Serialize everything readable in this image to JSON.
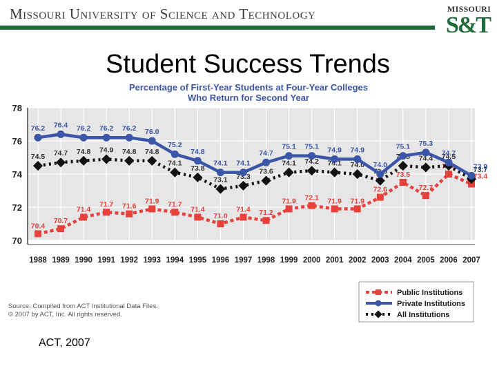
{
  "header": {
    "university": "Missouri University of Science and Technology",
    "logo_top": "MISSOURI",
    "logo_main": "S&T"
  },
  "slide": {
    "title": "Student Success Trends",
    "footer": "ACT, 2007"
  },
  "chart_data": {
    "type": "line",
    "title": "Percentage of First-Year Students at Four-Year Colleges",
    "subtitle": "Who Return for Second Year",
    "x": [
      "1988",
      "1989",
      "1990",
      "1991",
      "1992",
      "1993",
      "1994",
      "1995",
      "1996",
      "1997",
      "1998",
      "1999",
      "2000",
      "2001",
      "2002",
      "2003",
      "2004",
      "2005",
      "2006",
      "2007"
    ],
    "yticks": [
      70,
      72,
      74,
      76,
      78
    ],
    "ylim": [
      70,
      78
    ],
    "grid": true,
    "legend_position": "bottom-right",
    "series": [
      {
        "name": "Public Institutions",
        "color": "#e8413c",
        "style": "dashed",
        "values": [
          70.4,
          70.7,
          71.4,
          71.7,
          71.6,
          71.9,
          71.7,
          71.4,
          71.0,
          71.4,
          71.2,
          71.9,
          72.1,
          71.9,
          71.9,
          72.6,
          73.5,
          72.7,
          74.0,
          73.4
        ]
      },
      {
        "name": "Private Institutions",
        "color": "#3b55a8",
        "style": "solid",
        "values": [
          76.2,
          76.4,
          76.2,
          76.2,
          76.2,
          76.0,
          75.2,
          74.8,
          74.1,
          74.1,
          74.7,
          75.1,
          75.1,
          74.9,
          74.9,
          74.0,
          75.1,
          75.3,
          74.7,
          73.9
        ]
      },
      {
        "name": "All Institutions",
        "color": "#111111",
        "style": "dotted",
        "values": [
          74.5,
          74.7,
          74.8,
          74.9,
          74.8,
          74.8,
          74.1,
          73.8,
          73.1,
          73.3,
          73.6,
          74.1,
          74.2,
          74.1,
          74.0,
          73.6,
          74.5,
          74.4,
          74.5,
          73.7
        ]
      }
    ],
    "source_lines": [
      "Source: Compiled from ACT Institutional Data Files.",
      "© 2007 by ACT, Inc. All rights reserved."
    ]
  }
}
